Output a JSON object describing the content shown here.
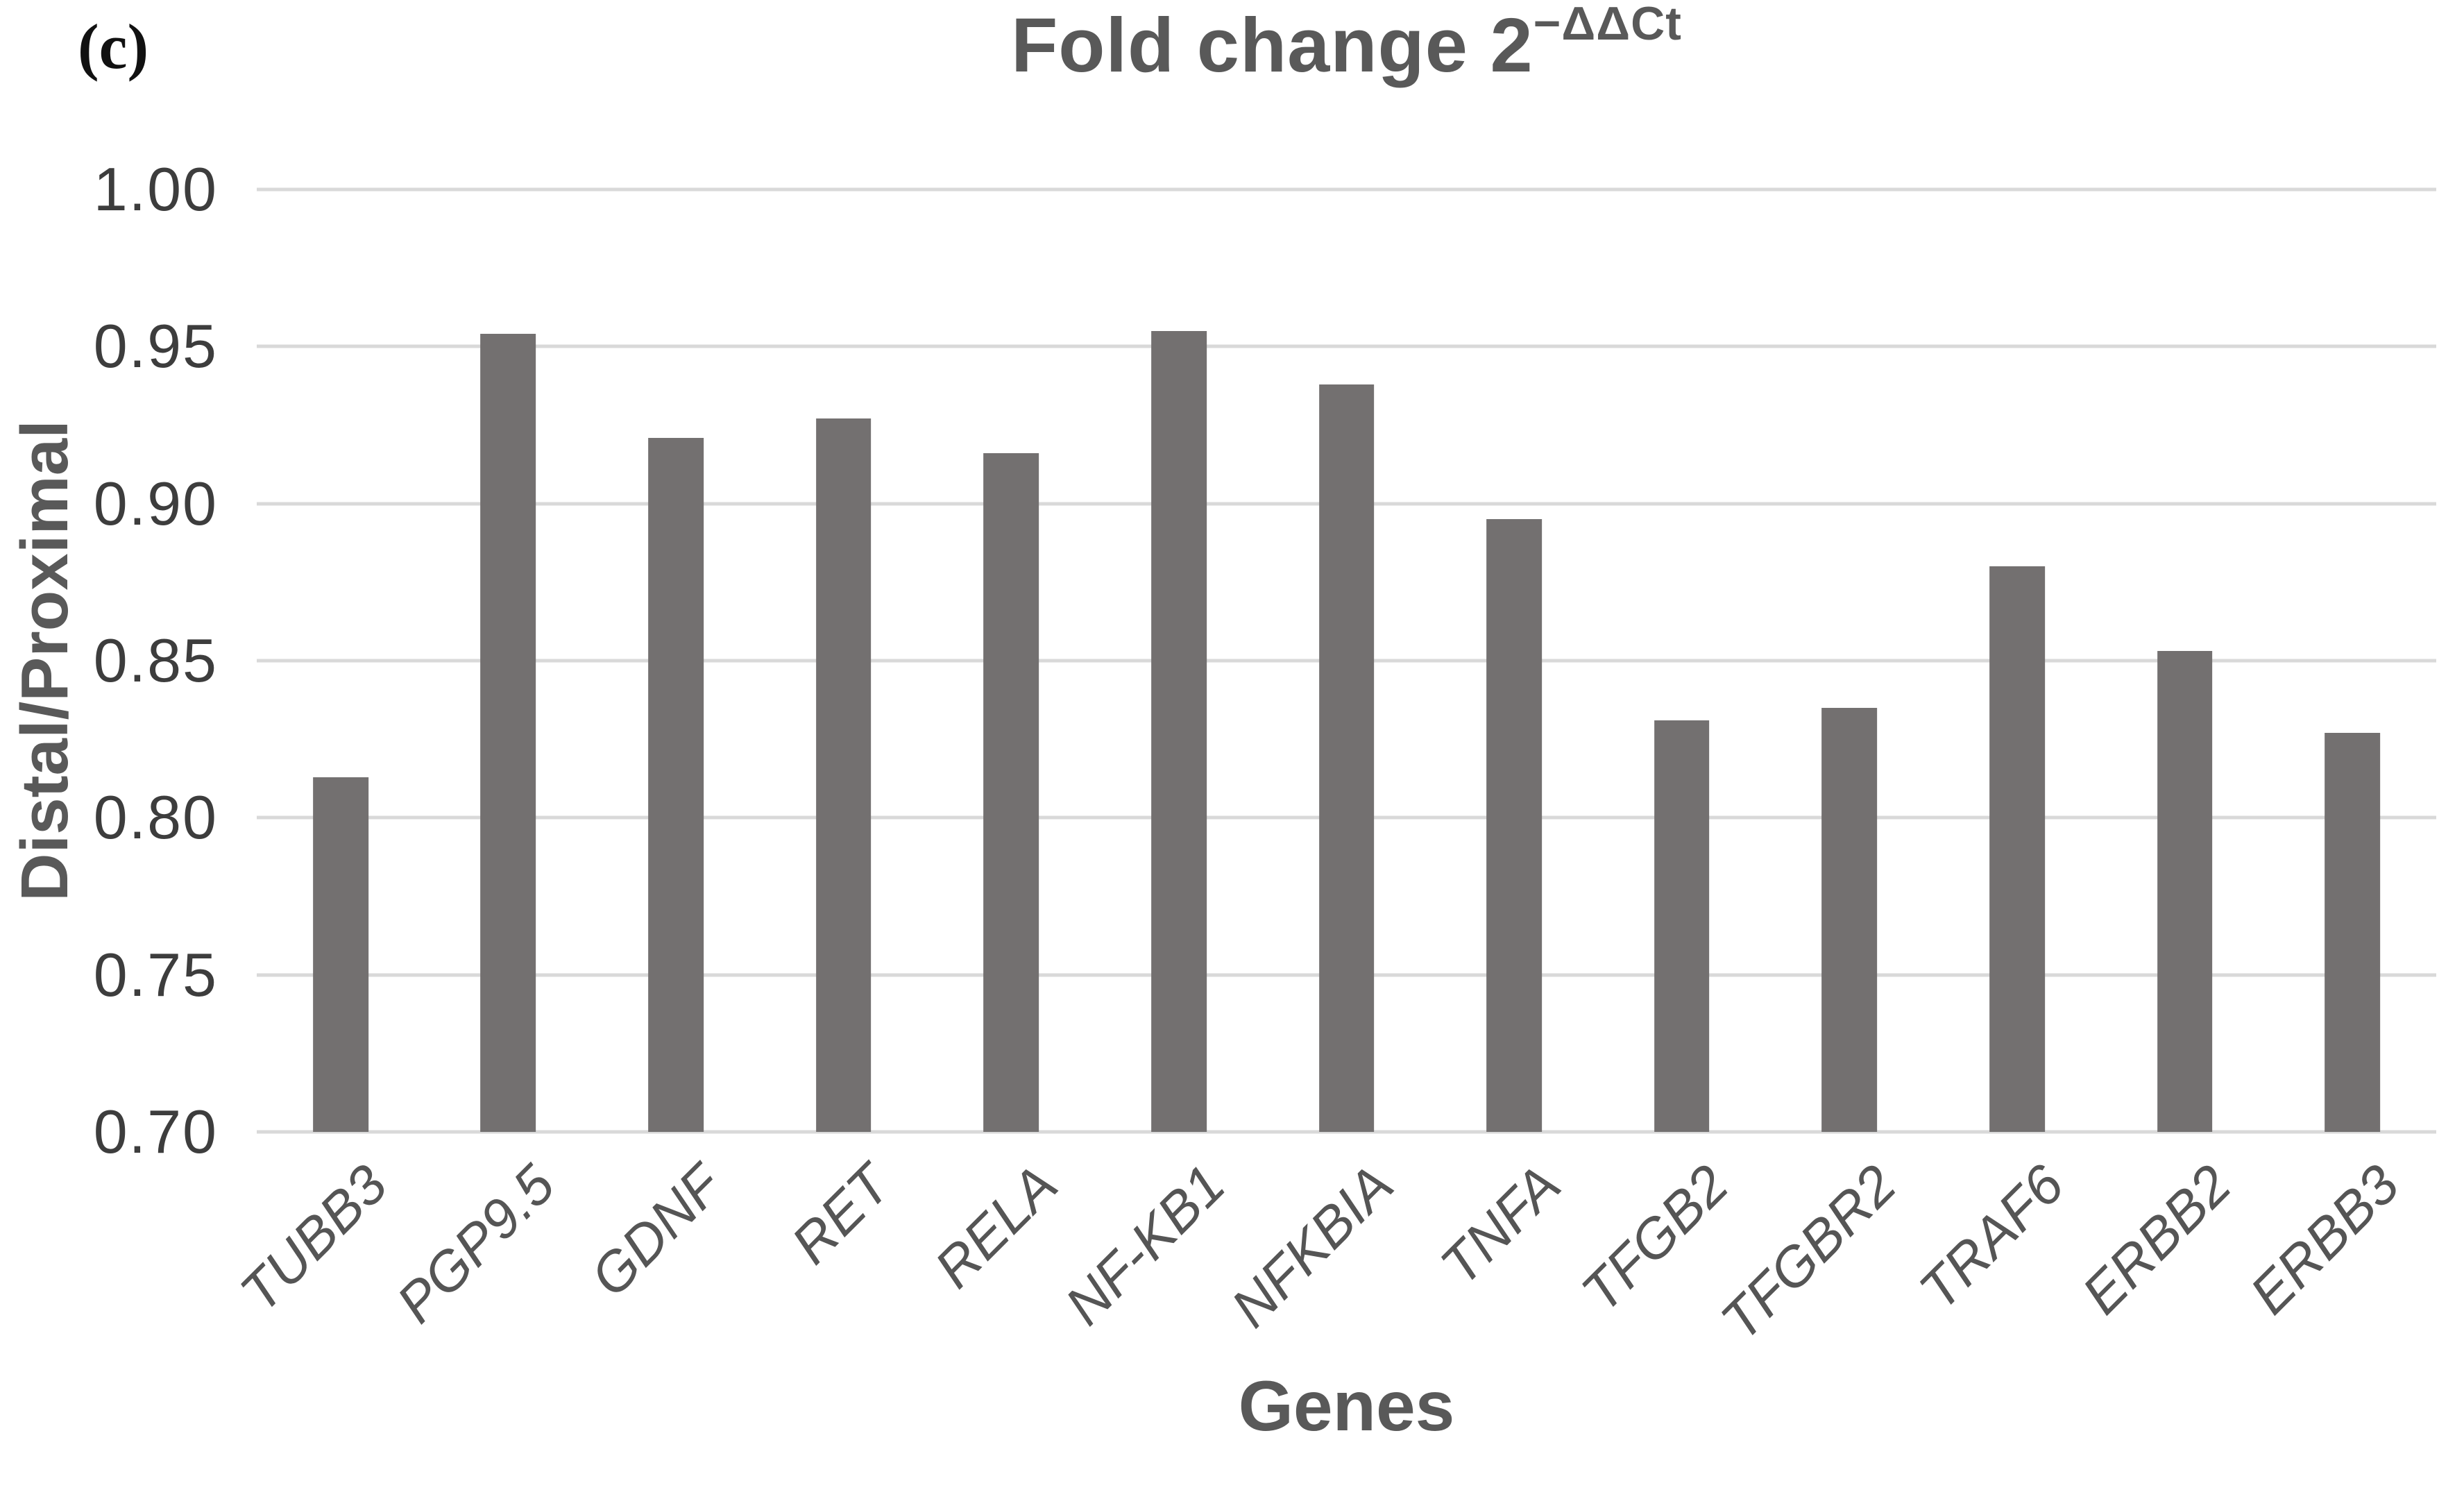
{
  "panel_label": "(c)",
  "chart_data": {
    "type": "bar",
    "title": "Fold change 2−ΔΔCt",
    "title_base": "Fold change 2",
    "title_superscript": "−ΔΔCt",
    "xlabel": "Genes",
    "ylabel": "Distal/Proximal",
    "categories": [
      "TUBB3",
      "PGP9.5",
      "GDNF",
      "RET",
      "RELA",
      "NF-KB1",
      "NFKBIA",
      "TNFA",
      "TFGB2",
      "TFGBR2",
      "TRAF6",
      "ERBB2",
      "ERBB3"
    ],
    "values": [
      0.813,
      0.954,
      0.921,
      0.927,
      0.916,
      0.955,
      0.938,
      0.895,
      0.831,
      0.835,
      0.88,
      0.853,
      0.827
    ],
    "ylim": [
      0.7,
      1.0
    ],
    "yticks": [
      "1.00",
      "0.95",
      "0.90",
      "0.85",
      "0.80",
      "0.75",
      "0.70"
    ],
    "grid": "horizontal",
    "legend": "none",
    "bar_width_fraction": 0.33,
    "colors": {
      "bar": "#737070",
      "gridline": "#d9d9d9",
      "y_tick_label": "#3d3d3d",
      "title": "#595959",
      "axis_label": "#595959",
      "category_label": "#555555",
      "panel_label": "#111111",
      "background": "#ffffff"
    }
  }
}
